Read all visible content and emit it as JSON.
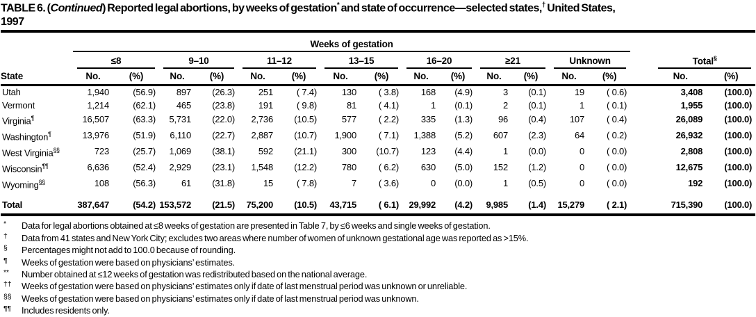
{
  "title": {
    "segments": [
      {
        "text": "TABLE 6. ("
      },
      {
        "text": "Continued",
        "italic": true
      },
      {
        "text": ") Reported legal abortions, by weeks of gestation"
      },
      {
        "text": "*",
        "sup": true
      },
      {
        "text": " and state of occurrence—selected states,"
      },
      {
        "text": "†",
        "sup": true
      },
      {
        "text": " United States,"
      },
      {
        "text": "1997",
        "newline": true
      }
    ]
  },
  "table": {
    "spanner_label": "Weeks of gestation",
    "state_header": "State",
    "col_subheaders": {
      "no": "No.",
      "pct": "(%)"
    },
    "groups": [
      {
        "label": "≤8"
      },
      {
        "label": "9–10"
      },
      {
        "label": "11–12"
      },
      {
        "label": "13–15"
      },
      {
        "label": "16–20"
      },
      {
        "label": "≥21"
      },
      {
        "label": "Unknown"
      },
      {
        "label": "Total",
        "sup": "§"
      }
    ],
    "rows": [
      {
        "state": "Utah",
        "sup": "",
        "cells": [
          "1,940",
          "(56.9)",
          "897",
          "(26.3)",
          "251",
          "( 7.4)",
          "130",
          "( 3.8)",
          "168",
          "(4.9)",
          "3",
          "(0.1)",
          "19",
          "( 0.6)",
          "3,408",
          "(100.0)"
        ]
      },
      {
        "state": "Vermont",
        "sup": "",
        "cells": [
          "1,214",
          "(62.1)",
          "465",
          "(23.8)",
          "191",
          "( 9.8)",
          "81",
          "( 4.1)",
          "1",
          "(0.1)",
          "2",
          "(0.1)",
          "1",
          "( 0.1)",
          "1,955",
          "(100.0)"
        ]
      },
      {
        "state": "Virginia",
        "sup": "¶",
        "cells": [
          "16,507",
          "(63.3)",
          "5,731",
          "(22.0)",
          "2,736",
          "(10.5)",
          "577",
          "( 2.2)",
          "335",
          "(1.3)",
          "96",
          "(0.4)",
          "107",
          "( 0.4)",
          "26,089",
          "(100.0)"
        ]
      },
      {
        "state": "Washington",
        "sup": "¶",
        "cells": [
          "13,976",
          "(51.9)",
          "6,110",
          "(22.7)",
          "2,887",
          "(10.7)",
          "1,900",
          "( 7.1)",
          "1,388",
          "(5.2)",
          "607",
          "(2.3)",
          "64",
          "( 0.2)",
          "26,932",
          "(100.0)"
        ]
      },
      {
        "state": "West Virginia",
        "sup": "§§",
        "cells": [
          "723",
          "(25.7)",
          "1,069",
          "(38.1)",
          "592",
          "(21.1)",
          "300",
          "(10.7)",
          "123",
          "(4.4)",
          "1",
          "(0.0)",
          "0",
          "( 0.0)",
          "2,808",
          "(100.0)"
        ]
      },
      {
        "state": "Wisconsin",
        "sup": "¶¶",
        "cells": [
          "6,636",
          "(52.4)",
          "2,929",
          "(23.1)",
          "1,548",
          "(12.2)",
          "780",
          "( 6.2)",
          "630",
          "(5.0)",
          "152",
          "(1.2)",
          "0",
          "( 0.0)",
          "12,675",
          "(100.0)"
        ]
      },
      {
        "state": "Wyoming",
        "sup": "§§",
        "cells": [
          "108",
          "(56.3)",
          "61",
          "(31.8)",
          "15",
          "( 7.8)",
          "7",
          "( 3.6)",
          "0",
          "(0.0)",
          "1",
          "(0.5)",
          "0",
          "( 0.0)",
          "192",
          "(100.0)"
        ]
      }
    ],
    "total_row": {
      "state": "Total",
      "sup": "",
      "cells": [
        "387,647",
        "(54.2)",
        "153,572",
        "(21.5)",
        "75,200",
        "(10.5)",
        "43,715",
        "( 6.1)",
        "29,992",
        "(4.2)",
        "9,985",
        "(1.4)",
        "15,279",
        "( 2.1)",
        "715,390",
        "(100.0)"
      ]
    }
  },
  "footnotes": [
    {
      "marker": "*",
      "text": "Data for legal abortions obtained at ≤8 weeks of gestation are presented in Table 7, by ≤6 weeks and single weeks of gestation."
    },
    {
      "marker": "†",
      "text": "Data from 41 states and New York City; excludes two areas where number of women of unknown gestational age was reported as >15%."
    },
    {
      "marker": "§",
      "text": "Percentages might not add to 100.0 because of rounding."
    },
    {
      "marker": "¶",
      "text": "Weeks of gestation were based on physicians’ estimates."
    },
    {
      "marker": "**",
      "text": "Number obtained at ≤12 weeks of gestation was redistributed based on the national average."
    },
    {
      "marker": "††",
      "text": "Weeks of gestation were based on physicians’ estimates only if date of last menstrual period was unknown or unreliable."
    },
    {
      "marker": "§§",
      "text": "Weeks of gestation were based on physicians’ estimates only if date of last menstrual period was unknown."
    },
    {
      "marker": "¶¶",
      "text": "Includes residents only."
    }
  ]
}
